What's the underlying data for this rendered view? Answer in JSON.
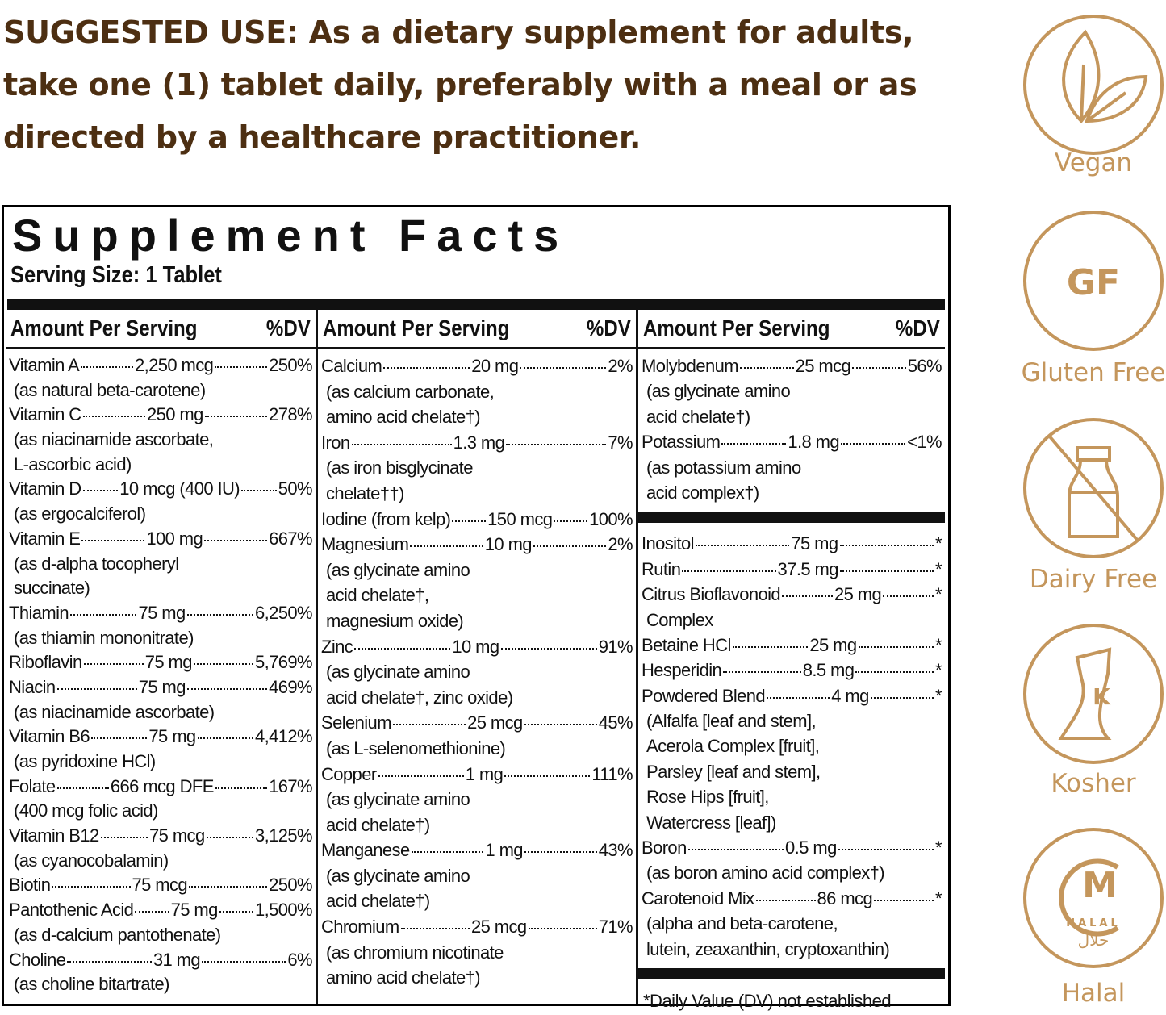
{
  "suggested_use": {
    "lines": [
      "SUGGESTED USE: As a dietary supplement for adults,",
      "take one (1) tablet daily, preferably with a meal or as",
      "directed by a healthcare practitioner."
    ]
  },
  "facts": {
    "title": "Supplement Facts",
    "serving": "Serving Size: 1 Tablet",
    "columns": [
      {
        "header": "Amount Per Serving",
        "dv_header": "%DV",
        "groups": [
          {
            "items": [
              {
                "name": "Vitamin A",
                "amount": "2,250 mcg",
                "dv": "250%"
              },
              {
                "note": "(as natural beta-carotene)"
              },
              {
                "name": "Vitamin C",
                "amount": "250 mg",
                "dv": "278%"
              },
              {
                "note": "(as niacinamide ascorbate,"
              },
              {
                "note": "L-ascorbic acid)"
              },
              {
                "name": "Vitamin D",
                "amount": "10 mcg (400 IU)",
                "dv": "50%"
              },
              {
                "note": "(as ergocalciferol)"
              },
              {
                "name": "Vitamin E",
                "amount": "100 mg",
                "dv": "667%"
              },
              {
                "note": "(as d-alpha tocopheryl"
              },
              {
                "note": "succinate)"
              },
              {
                "name": "Thiamin",
                "amount": "75 mg",
                "dv": "6,250%"
              },
              {
                "note": "(as thiamin mononitrate)"
              },
              {
                "name": "Riboflavin",
                "amount": "75 mg",
                "dv": "5,769%"
              },
              {
                "name": "Niacin",
                "amount": "75 mg",
                "dv": "469%"
              },
              {
                "note": "(as niacinamide ascorbate)"
              },
              {
                "name": "Vitamin B6",
                "amount": "75 mg",
                "dv": "4,412%"
              },
              {
                "note": "(as pyridoxine HCl)"
              },
              {
                "name": "Folate",
                "amount": "666 mcg DFE",
                "dv": "167%"
              },
              {
                "note": "(400 mcg folic acid)"
              },
              {
                "name": "Vitamin B12",
                "amount": "75 mcg",
                "dv": "3,125%"
              },
              {
                "note": "(as cyanocobalamin)"
              },
              {
                "name": "Biotin",
                "amount": "75 mcg",
                "dv": "250%"
              },
              {
                "name": "Pantothenic Acid",
                "amount": "75 mg",
                "dv": "1,500%"
              },
              {
                "note": "(as d-calcium pantothenate)"
              },
              {
                "name": "Choline",
                "amount": "31 mg",
                "dv": "6%"
              },
              {
                "note": "(as choline bitartrate)"
              }
            ]
          }
        ]
      },
      {
        "header": "Amount Per Serving",
        "dv_header": "%DV",
        "groups": [
          {
            "items": [
              {
                "name": "Calcium",
                "amount": "20 mg",
                "dv": "2%"
              },
              {
                "note": "(as calcium carbonate,"
              },
              {
                "note": "amino acid chelate†)"
              },
              {
                "name": "Iron",
                "amount": "1.3 mg",
                "dv": "7%"
              },
              {
                "note": "(as iron bisglycinate"
              },
              {
                "note": "chelate††)"
              },
              {
                "name": "Iodine (from kelp)",
                "amount": "150 mcg",
                "dv": "100%"
              },
              {
                "name": "Magnesium",
                "amount": "10 mg",
                "dv": "2%"
              },
              {
                "note": "(as glycinate amino"
              },
              {
                "note": "acid chelate†,"
              },
              {
                "note": "magnesium oxide)"
              },
              {
                "name": "Zinc",
                "amount": "10 mg",
                "dv": "91%"
              },
              {
                "note": "(as glycinate amino"
              },
              {
                "note": "acid chelate†, zinc oxide)"
              },
              {
                "name": "Selenium",
                "amount": "25 mcg",
                "dv": "45%"
              },
              {
                "note": "(as L-selenomethionine)"
              },
              {
                "name": "Copper",
                "amount": "1 mg",
                "dv": "111%"
              },
              {
                "note": "(as glycinate amino"
              },
              {
                "note": "acid chelate†)"
              },
              {
                "name": "Manganese",
                "amount": "1 mg",
                "dv": "43%"
              },
              {
                "note": "(as glycinate amino"
              },
              {
                "note": "acid chelate†)"
              },
              {
                "name": "Chromium",
                "amount": "25 mcg",
                "dv": "71%"
              },
              {
                "note": "(as chromium nicotinate"
              },
              {
                "note": "amino acid chelate†)"
              }
            ]
          }
        ]
      },
      {
        "header": "Amount Per Serving",
        "dv_header": "%DV",
        "groups": [
          {
            "items": [
              {
                "name": "Molybdenum",
                "amount": "25 mcg",
                "dv": "56%"
              },
              {
                "note": "(as glycinate amino"
              },
              {
                "note": "acid chelate†)"
              },
              {
                "name": "Potassium",
                "amount": "1.8 mg",
                "dv": "<1%"
              },
              {
                "note": "(as potassium amino"
              },
              {
                "note": "acid complex†)"
              }
            ]
          },
          {
            "items": [
              {
                "name": "Inositol",
                "amount": "75 mg",
                "dv": "*"
              },
              {
                "name": "Rutin",
                "amount": "37.5 mg",
                "dv": "*"
              },
              {
                "name": "Citrus Bioflavonoid",
                "amount": "25 mg",
                "dv": "*"
              },
              {
                "note": "Complex"
              },
              {
                "name": "Betaine HCl",
                "amount": "25 mg",
                "dv": "*"
              },
              {
                "name": "Hesperidin",
                "amount": "8.5 mg",
                "dv": "*"
              },
              {
                "name": "Powdered Blend",
                "amount": "4 mg",
                "dv": "*"
              },
              {
                "note": "(Alfalfa [leaf and stem],"
              },
              {
                "note": "Acerola Complex [fruit],"
              },
              {
                "note": "Parsley [leaf and stem],"
              },
              {
                "note": "Rose Hips [fruit],"
              },
              {
                "note": "Watercress [leaf])"
              },
              {
                "name": "Boron",
                "amount": "0.5 mg",
                "dv": "*"
              },
              {
                "note": "(as boron amino acid complex†)"
              },
              {
                "name": "Carotenoid Mix",
                "amount": "86 mcg",
                "dv": "*"
              },
              {
                "note": "(alpha and beta-carotene,"
              },
              {
                "note": "lutein, zeaxanthin, cryptoxanthin)"
              }
            ]
          }
        ],
        "footnote": "*Daily Value (DV) not established"
      }
    ]
  },
  "badges": [
    {
      "label": "Vegan"
    },
    {
      "icon_text": "GF",
      "label": "Gluten Free"
    },
    {
      "label": "Dairy Free"
    },
    {
      "icon_text": "K",
      "label": "Kosher"
    },
    {
      "icon_text": "M",
      "icon_subtext": "HALAL",
      "icon_arabic": "حلال",
      "label": "Halal"
    }
  ]
}
